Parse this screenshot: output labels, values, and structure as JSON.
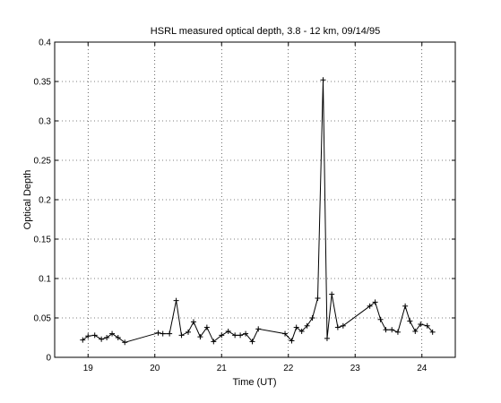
{
  "chart_data": {
    "type": "line",
    "title": "HSRL measured optical depth, 3.8 - 12 km, 09/14/95",
    "xlabel": "Time (UT)",
    "ylabel": "Optical Depth",
    "xlim": [
      18.5,
      24.5
    ],
    "ylim": [
      0,
      0.4
    ],
    "xticks": [
      19,
      20,
      21,
      22,
      23,
      24
    ],
    "yticks": [
      0,
      0.05,
      0.1,
      0.15,
      0.2,
      0.25,
      0.3,
      0.35,
      0.4
    ],
    "xtick_labels": [
      "19",
      "20",
      "21",
      "22",
      "23",
      "24"
    ],
    "ytick_labels": [
      "0",
      "0.05",
      "0.1",
      "0.15",
      "0.2",
      "0.25",
      "0.3",
      "0.35",
      "0.4"
    ],
    "grid": true,
    "marker": "+",
    "line_color": "#000000",
    "series": [
      {
        "x": [
          18.92,
          19.0,
          19.1,
          19.2,
          19.28,
          19.36,
          19.45,
          19.55,
          20.05,
          20.12,
          20.22,
          20.32,
          20.4,
          20.5,
          20.58,
          20.68,
          20.78,
          20.88,
          21.0,
          21.1,
          21.2,
          21.28,
          21.36,
          21.46,
          21.55,
          21.95,
          22.05,
          22.12,
          22.2,
          22.28,
          22.36,
          22.44,
          22.52,
          22.58,
          22.65,
          22.74,
          22.82,
          23.22,
          23.3,
          23.38,
          23.46,
          23.55,
          23.64,
          23.75,
          23.82,
          23.9,
          23.98,
          24.08,
          24.16
        ],
        "y": [
          0.022,
          0.027,
          0.028,
          0.023,
          0.025,
          0.03,
          0.025,
          0.019,
          0.031,
          0.03,
          0.03,
          0.072,
          0.028,
          0.032,
          0.045,
          0.026,
          0.038,
          0.02,
          0.028,
          0.033,
          0.028,
          0.028,
          0.03,
          0.02,
          0.036,
          0.03,
          0.021,
          0.038,
          0.033,
          0.04,
          0.05,
          0.075,
          0.352,
          0.024,
          0.08,
          0.038,
          0.04,
          0.065,
          0.07,
          0.048,
          0.035,
          0.035,
          0.032,
          0.065,
          0.046,
          0.033,
          0.042,
          0.04,
          0.032
        ]
      }
    ]
  }
}
